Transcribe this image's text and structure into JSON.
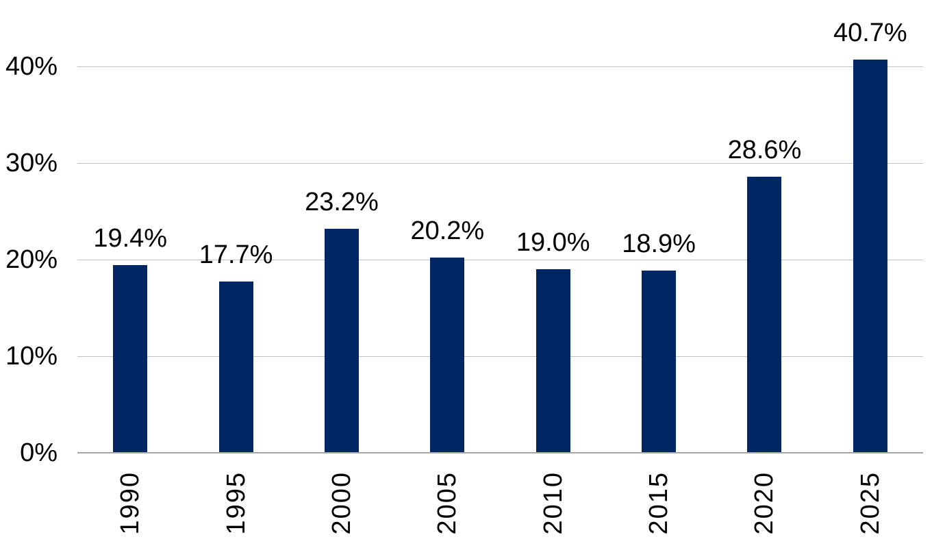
{
  "chart_data": {
    "type": "bar",
    "title": "",
    "xlabel": "",
    "ylabel": "",
    "legend_position": "none",
    "grid": true,
    "categories": [
      "1990",
      "1995",
      "2000",
      "2005",
      "2010",
      "2015",
      "2020",
      "2025"
    ],
    "values": [
      19.4,
      17.7,
      23.2,
      20.2,
      19.0,
      18.9,
      28.6,
      40.7
    ],
    "value_labels": [
      "19.4%",
      "17.7%",
      "23.2%",
      "20.2%",
      "19.0%",
      "18.9%",
      "28.6%",
      "40.7%"
    ],
    "y_ticks": [
      {
        "value": 0,
        "label": "0%"
      },
      {
        "value": 10,
        "label": "10%"
      },
      {
        "value": 20,
        "label": "20%"
      },
      {
        "value": 30,
        "label": "30%"
      },
      {
        "value": 40,
        "label": "40%"
      }
    ],
    "ylim": [
      0,
      46.9
    ],
    "colors": {
      "bar": "#002664",
      "gridline": "#C0C0C0",
      "axis_line": "#A6A6A6",
      "text": "#000000",
      "background": "#FFFFFF"
    }
  }
}
